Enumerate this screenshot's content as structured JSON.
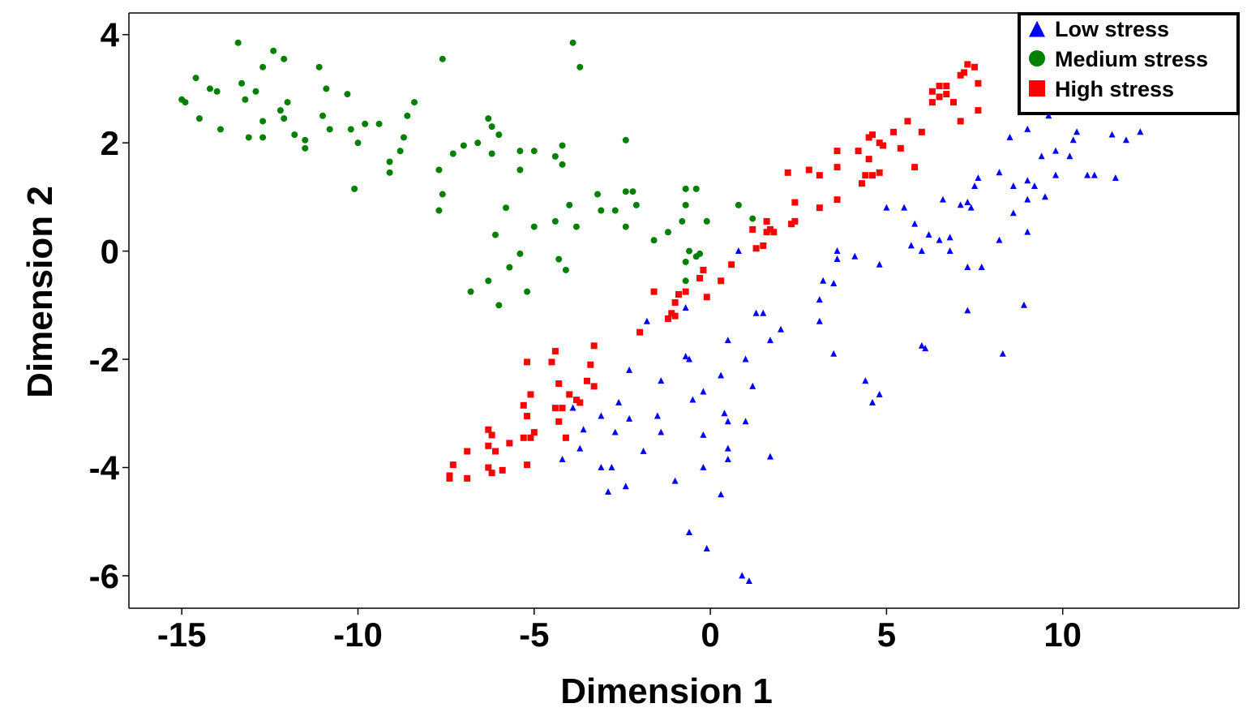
{
  "chart_data": {
    "type": "scatter",
    "xlabel": "Dimension 1",
    "ylabel": "Dimension 2",
    "xlim": [
      -16.5,
      15
    ],
    "ylim": [
      -6.6,
      4.4
    ],
    "xticks": [
      -15,
      -10,
      -5,
      0,
      5,
      10
    ],
    "yticks": [
      4,
      2,
      0,
      -2,
      -4,
      -6
    ],
    "xtick_labels": [
      "-15",
      "-10",
      "-5",
      "0",
      "5",
      "10"
    ],
    "ytick_labels": [
      "4",
      "2",
      "0",
      "-2",
      "-4",
      "-6"
    ],
    "grid": false,
    "legend_position": "top-right",
    "series": [
      {
        "name": "Low stress",
        "marker": "triangle",
        "color": "#0000ff",
        "points": [
          [
            9.6,
            2.5
          ],
          [
            9.0,
            2.25
          ],
          [
            8.5,
            2.1
          ],
          [
            10.4,
            2.2
          ],
          [
            11.4,
            2.15
          ],
          [
            12.2,
            2.2
          ],
          [
            11.8,
            2.05
          ],
          [
            10.3,
            2.05
          ],
          [
            9.4,
            1.75
          ],
          [
            9.8,
            1.85
          ],
          [
            10.2,
            1.75
          ],
          [
            10.9,
            1.4
          ],
          [
            11.5,
            1.35
          ],
          [
            10.7,
            1.4
          ],
          [
            8.2,
            1.45
          ],
          [
            9.0,
            1.3
          ],
          [
            9.2,
            1.2
          ],
          [
            9.8,
            1.4
          ],
          [
            8.6,
            1.2
          ],
          [
            7.6,
            1.35
          ],
          [
            7.5,
            1.2
          ],
          [
            6.6,
            0.95
          ],
          [
            9.5,
            1.0
          ],
          [
            9.0,
            0.95
          ],
          [
            7.3,
            0.9
          ],
          [
            7.1,
            0.85
          ],
          [
            8.6,
            0.7
          ],
          [
            7.4,
            0.8
          ],
          [
            5.0,
            0.8
          ],
          [
            5.5,
            0.8
          ],
          [
            5.8,
            0.5
          ],
          [
            6.2,
            0.3
          ],
          [
            6.8,
            0.25
          ],
          [
            9.0,
            0.35
          ],
          [
            8.2,
            0.2
          ],
          [
            5.7,
            0.1
          ],
          [
            6.0,
            0.0
          ],
          [
            6.5,
            0.2
          ],
          [
            6.8,
            0.0
          ],
          [
            3.6,
            0.0
          ],
          [
            4.1,
            -0.1
          ],
          [
            3.6,
            -0.15
          ],
          [
            4.8,
            -0.25
          ],
          [
            7.3,
            -0.3
          ],
          [
            7.7,
            -0.3
          ],
          [
            3.2,
            -0.55
          ],
          [
            3.5,
            -0.6
          ],
          [
            3.1,
            -0.9
          ],
          [
            7.3,
            -1.1
          ],
          [
            8.9,
            -1.0
          ],
          [
            0.8,
            0.0
          ],
          [
            1.3,
            -1.15
          ],
          [
            1.5,
            -1.15
          ],
          [
            -0.7,
            -1.05
          ],
          [
            -1.8,
            -1.3
          ],
          [
            1.7,
            -1.65
          ],
          [
            2.0,
            -1.45
          ],
          [
            3.1,
            -1.3
          ],
          [
            0.5,
            -1.65
          ],
          [
            6.0,
            -1.75
          ],
          [
            6.1,
            -1.8
          ],
          [
            8.3,
            -1.9
          ],
          [
            3.5,
            -1.9
          ],
          [
            -0.7,
            -1.95
          ],
          [
            -0.6,
            -2.0
          ],
          [
            1.0,
            -2.0
          ],
          [
            -2.3,
            -2.2
          ],
          [
            -1.4,
            -2.4
          ],
          [
            0.3,
            -2.3
          ],
          [
            1.2,
            -2.5
          ],
          [
            4.4,
            -2.4
          ],
          [
            -3.3,
            -2.5
          ],
          [
            -2.6,
            -2.8
          ],
          [
            -0.2,
            -2.6
          ],
          [
            -0.5,
            -2.75
          ],
          [
            4.8,
            -2.65
          ],
          [
            4.6,
            -2.8
          ],
          [
            -3.9,
            -2.9
          ],
          [
            -3.1,
            -3.05
          ],
          [
            -1.5,
            -3.05
          ],
          [
            0.4,
            -3.0
          ],
          [
            -2.3,
            -3.1
          ],
          [
            -3.6,
            -3.3
          ],
          [
            -2.7,
            -3.35
          ],
          [
            -1.4,
            -3.35
          ],
          [
            1.0,
            -3.15
          ],
          [
            0.5,
            -3.15
          ],
          [
            -0.2,
            -3.4
          ],
          [
            -3.7,
            -3.65
          ],
          [
            -1.9,
            -3.7
          ],
          [
            0.5,
            -3.65
          ],
          [
            -4.2,
            -3.85
          ],
          [
            -3.1,
            -4.0
          ],
          [
            -2.8,
            -4.0
          ],
          [
            -0.2,
            -4.0
          ],
          [
            0.5,
            -3.85
          ],
          [
            1.7,
            -3.8
          ],
          [
            -1.0,
            -4.25
          ],
          [
            -2.9,
            -4.45
          ],
          [
            -2.4,
            -4.35
          ],
          [
            0.3,
            -4.5
          ],
          [
            -0.6,
            -5.2
          ],
          [
            -0.1,
            -5.5
          ],
          [
            0.9,
            -6.0
          ],
          [
            1.1,
            -6.1
          ]
        ]
      },
      {
        "name": "Medium stress",
        "marker": "circle",
        "color": "#008000",
        "points": [
          [
            -15.0,
            2.8
          ],
          [
            -14.9,
            2.75
          ],
          [
            -14.6,
            3.2
          ],
          [
            -14.2,
            3.0
          ],
          [
            -14.0,
            2.95
          ],
          [
            -14.5,
            2.45
          ],
          [
            -13.9,
            2.25
          ],
          [
            -13.4,
            3.85
          ],
          [
            -13.3,
            3.1
          ],
          [
            -13.2,
            2.8
          ],
          [
            -12.9,
            2.95
          ],
          [
            -12.7,
            3.4
          ],
          [
            -12.4,
            3.7
          ],
          [
            -12.1,
            3.55
          ],
          [
            -12.2,
            2.6
          ],
          [
            -12.1,
            2.45
          ],
          [
            -11.8,
            2.15
          ],
          [
            -11.5,
            2.05
          ],
          [
            -11.5,
            1.9
          ],
          [
            -12.0,
            2.75
          ],
          [
            -12.7,
            2.4
          ],
          [
            -13.1,
            2.1
          ],
          [
            -12.7,
            2.1
          ],
          [
            -11.1,
            3.4
          ],
          [
            -10.9,
            3.0
          ],
          [
            -10.3,
            2.9
          ],
          [
            -11.0,
            2.5
          ],
          [
            -10.8,
            2.25
          ],
          [
            -10.2,
            2.25
          ],
          [
            -10.0,
            2.0
          ],
          [
            -9.8,
            2.35
          ],
          [
            -9.4,
            2.35
          ],
          [
            -10.1,
            1.15
          ],
          [
            -9.1,
            1.65
          ],
          [
            -9.1,
            1.45
          ],
          [
            -8.8,
            1.85
          ],
          [
            -8.7,
            2.1
          ],
          [
            -8.6,
            2.5
          ],
          [
            -8.4,
            2.75
          ],
          [
            -7.6,
            3.55
          ],
          [
            -7.7,
            1.5
          ],
          [
            -7.6,
            1.05
          ],
          [
            -7.7,
            0.75
          ],
          [
            -7.3,
            1.8
          ],
          [
            -7.0,
            1.95
          ],
          [
            -6.6,
            2.0
          ],
          [
            -6.3,
            2.45
          ],
          [
            -6.2,
            2.3
          ],
          [
            -6.0,
            2.15
          ],
          [
            -6.2,
            1.8
          ],
          [
            -5.4,
            1.85
          ],
          [
            -5.0,
            1.85
          ],
          [
            -4.2,
            1.95
          ],
          [
            -4.4,
            1.75
          ],
          [
            -5.4,
            1.5
          ],
          [
            -4.2,
            1.6
          ],
          [
            -3.9,
            3.85
          ],
          [
            -3.7,
            3.4
          ],
          [
            -2.4,
            2.05
          ],
          [
            -2.4,
            1.1
          ],
          [
            -2.2,
            1.1
          ],
          [
            -3.2,
            1.05
          ],
          [
            -4.0,
            0.85
          ],
          [
            -3.1,
            0.75
          ],
          [
            -2.7,
            0.75
          ],
          [
            -2.4,
            0.45
          ],
          [
            -2.1,
            0.85
          ],
          [
            -1.6,
            0.2
          ],
          [
            -1.2,
            0.35
          ],
          [
            -0.8,
            0.55
          ],
          [
            -0.7,
            0.85
          ],
          [
            -0.7,
            1.15
          ],
          [
            -0.4,
            1.15
          ],
          [
            -0.1,
            0.55
          ],
          [
            0.8,
            0.85
          ],
          [
            1.2,
            0.6
          ],
          [
            -5.8,
            0.8
          ],
          [
            -5.0,
            0.45
          ],
          [
            -4.4,
            0.55
          ],
          [
            -3.8,
            0.45
          ],
          [
            -6.1,
            0.3
          ],
          [
            -5.4,
            -0.05
          ],
          [
            -4.3,
            -0.15
          ],
          [
            -5.7,
            -0.3
          ],
          [
            -4.1,
            -0.35
          ],
          [
            -6.8,
            -0.75
          ],
          [
            -6.3,
            -0.55
          ],
          [
            -5.2,
            -0.75
          ],
          [
            -6.0,
            -1.0
          ],
          [
            -0.4,
            -0.1
          ],
          [
            -0.3,
            -0.05
          ],
          [
            -0.7,
            -0.2
          ],
          [
            -0.7,
            -0.55
          ],
          [
            -0.6,
            0.0
          ]
        ]
      },
      {
        "name": "High stress",
        "marker": "square",
        "color": "#ff0000",
        "points": [
          [
            7.3,
            3.45
          ],
          [
            7.5,
            3.4
          ],
          [
            6.5,
            3.05
          ],
          [
            6.7,
            3.05
          ],
          [
            7.2,
            3.3
          ],
          [
            7.1,
            3.25
          ],
          [
            7.6,
            3.1
          ],
          [
            6.3,
            2.95
          ],
          [
            6.5,
            2.85
          ],
          [
            6.7,
            2.9
          ],
          [
            6.3,
            2.75
          ],
          [
            6.9,
            2.75
          ],
          [
            7.6,
            2.6
          ],
          [
            7.1,
            2.4
          ],
          [
            5.6,
            2.4
          ],
          [
            5.2,
            2.2
          ],
          [
            6.0,
            2.2
          ],
          [
            4.6,
            2.15
          ],
          [
            4.5,
            2.1
          ],
          [
            4.8,
            2.0
          ],
          [
            4.9,
            1.95
          ],
          [
            5.4,
            1.9
          ],
          [
            3.6,
            1.85
          ],
          [
            4.2,
            1.85
          ],
          [
            4.5,
            1.7
          ],
          [
            3.6,
            1.55
          ],
          [
            5.8,
            1.55
          ],
          [
            4.4,
            1.4
          ],
          [
            4.6,
            1.4
          ],
          [
            4.8,
            1.45
          ],
          [
            4.3,
            1.25
          ],
          [
            2.2,
            1.45
          ],
          [
            2.8,
            1.5
          ],
          [
            3.1,
            1.4
          ],
          [
            2.4,
            0.9
          ],
          [
            3.6,
            0.95
          ],
          [
            3.1,
            0.8
          ],
          [
            1.6,
            0.55
          ],
          [
            1.7,
            0.4
          ],
          [
            1.2,
            0.4
          ],
          [
            1.5,
            0.1
          ],
          [
            2.3,
            0.5
          ],
          [
            2.4,
            0.55
          ],
          [
            1.3,
            0.05
          ],
          [
            1.6,
            0.35
          ],
          [
            1.8,
            0.35
          ],
          [
            0.6,
            -0.25
          ],
          [
            0.3,
            -0.55
          ],
          [
            -0.2,
            -0.35
          ],
          [
            -0.3,
            -0.5
          ],
          [
            -0.1,
            -0.85
          ],
          [
            -1.6,
            -0.75
          ],
          [
            -0.9,
            -0.8
          ],
          [
            -0.7,
            -0.75
          ],
          [
            -1.0,
            -0.95
          ],
          [
            -1.1,
            -1.15
          ],
          [
            -1.2,
            -1.25
          ],
          [
            -1.0,
            -1.2
          ],
          [
            -2.0,
            -1.5
          ],
          [
            -3.3,
            -1.75
          ],
          [
            -4.4,
            -1.85
          ],
          [
            -5.2,
            -2.05
          ],
          [
            -4.5,
            -2.05
          ],
          [
            -3.4,
            -2.1
          ],
          [
            -4.3,
            -2.45
          ],
          [
            -3.5,
            -2.4
          ],
          [
            -3.3,
            -2.5
          ],
          [
            -5.1,
            -2.65
          ],
          [
            -4.0,
            -2.65
          ],
          [
            -3.8,
            -2.75
          ],
          [
            -3.7,
            -2.8
          ],
          [
            -5.3,
            -2.85
          ],
          [
            -4.4,
            -2.9
          ],
          [
            -4.2,
            -2.9
          ],
          [
            -5.2,
            -3.05
          ],
          [
            -4.3,
            -3.15
          ],
          [
            -6.3,
            -3.3
          ],
          [
            -6.2,
            -3.4
          ],
          [
            -5.3,
            -3.45
          ],
          [
            -5.1,
            -3.45
          ],
          [
            -5.0,
            -3.35
          ],
          [
            -5.7,
            -3.55
          ],
          [
            -4.1,
            -3.45
          ],
          [
            -6.3,
            -3.6
          ],
          [
            -6.1,
            -3.7
          ],
          [
            -6.9,
            -3.7
          ],
          [
            -7.3,
            -3.95
          ],
          [
            -6.3,
            -4.0
          ],
          [
            -5.9,
            -4.05
          ],
          [
            -5.2,
            -3.95
          ],
          [
            -6.2,
            -4.1
          ],
          [
            -7.4,
            -4.15
          ],
          [
            -6.9,
            -4.2
          ],
          [
            -7.4,
            -4.2
          ]
        ]
      }
    ]
  }
}
